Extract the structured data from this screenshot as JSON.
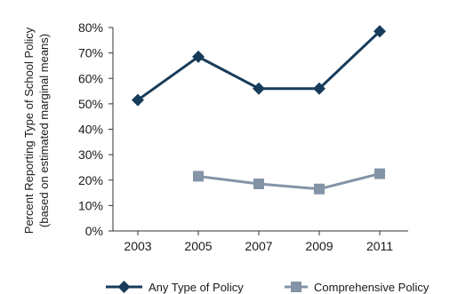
{
  "chart_data": {
    "type": "line",
    "title": "",
    "xlabel": "",
    "ylabel_line1": "Percent Reporting Type of School Policy",
    "ylabel_line2": "(based on estimated marginal means)",
    "x": [
      "2003",
      "2005",
      "2007",
      "2009",
      "2011"
    ],
    "ylim": [
      0,
      80
    ],
    "y_ticks": [
      0,
      10,
      20,
      30,
      40,
      50,
      60,
      70,
      80
    ],
    "y_tick_labels": [
      "0%",
      "10%",
      "20%",
      "30%",
      "40%",
      "50%",
      "60%",
      "70%",
      "80%"
    ],
    "grid": false,
    "legend_position": "bottom",
    "series": [
      {
        "name": "Any Type of Policy",
        "values": [
          51.5,
          68.5,
          56,
          56,
          78.5
        ],
        "color": "#173c5b",
        "marker": "diamond"
      },
      {
        "name": "Comprehensive Policy",
        "values": [
          null,
          21.5,
          18.5,
          16.5,
          22.5
        ],
        "color": "#8494a7",
        "marker": "square"
      }
    ]
  }
}
